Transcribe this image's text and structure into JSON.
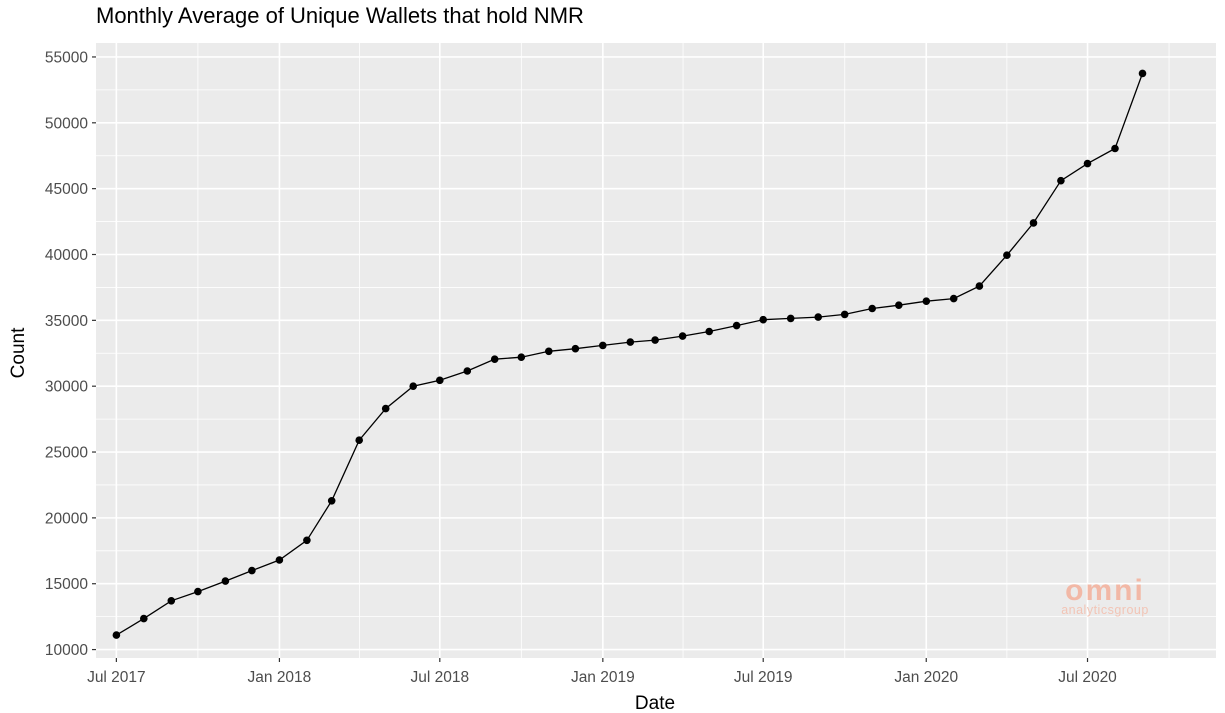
{
  "chart_data": {
    "type": "line",
    "title": "Monthly Average of Unique Wallets that hold NMR",
    "xlabel": "Date",
    "ylabel": "Count",
    "ylim": [
      10000,
      55000
    ],
    "xlim": [
      "2017-06-08",
      "2020-11-23"
    ],
    "y_ticks": [
      10000,
      15000,
      20000,
      25000,
      30000,
      35000,
      40000,
      45000,
      50000,
      55000
    ],
    "x_ticks": [
      {
        "label": "Jul 2017",
        "date": "2017-07-01"
      },
      {
        "label": "Jan 2018",
        "date": "2018-01-01"
      },
      {
        "label": "Jul 2018",
        "date": "2018-07-01"
      },
      {
        "label": "Jan 2019",
        "date": "2019-01-01"
      },
      {
        "label": "Jul 2019",
        "date": "2019-07-01"
      },
      {
        "label": "Jan 2020",
        "date": "2020-01-01"
      },
      {
        "label": "Jul 2020",
        "date": "2020-07-01"
      }
    ],
    "grid": true,
    "background": "#ebebeb",
    "line_color": "#000000",
    "point_color": "#000000",
    "series": [
      {
        "x": [
          "2017-07-01",
          "2017-08-01",
          "2017-09-01",
          "2017-10-01",
          "2017-11-01",
          "2017-12-01",
          "2018-01-01",
          "2018-02-01",
          "2018-03-01",
          "2018-04-01",
          "2018-05-01",
          "2018-06-01",
          "2018-07-01",
          "2018-08-01",
          "2018-09-01",
          "2018-10-01",
          "2018-11-01",
          "2018-12-01",
          "2019-01-01",
          "2019-02-01",
          "2019-03-01",
          "2019-04-01",
          "2019-05-01",
          "2019-06-01",
          "2019-07-01",
          "2019-08-01",
          "2019-09-01",
          "2019-10-01",
          "2019-11-01",
          "2019-12-01",
          "2020-01-01",
          "2020-02-01",
          "2020-03-01",
          "2020-04-01",
          "2020-05-01",
          "2020-06-01",
          "2020-07-01",
          "2020-08-01",
          "2020-09-01"
        ],
        "values": [
          11100,
          12350,
          13700,
          14400,
          15200,
          16000,
          16800,
          18300,
          21300,
          25900,
          28300,
          30000,
          30450,
          31150,
          32050,
          32200,
          32650,
          32850,
          33100,
          33350,
          33500,
          33800,
          34150,
          34600,
          35050,
          35150,
          35250,
          35450,
          35900,
          36150,
          36450,
          36650,
          37600,
          39950,
          42400,
          45600,
          46900,
          48050,
          53750
        ]
      }
    ]
  },
  "watermark": {
    "brand": "omni",
    "tagline_1": "analytics",
    "tagline_2": "group"
  }
}
